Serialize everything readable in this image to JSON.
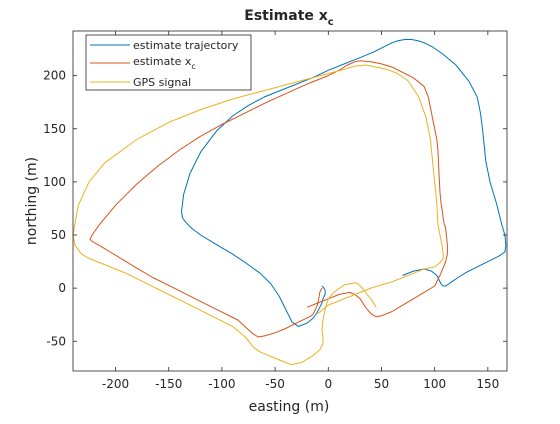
{
  "chart_data": {
    "type": "line",
    "title": "Estimate x",
    "title_subscript": "c",
    "xlabel": "easting (m)",
    "ylabel": "northing (m)",
    "xlim": [
      -240,
      168
    ],
    "ylim": [
      -78,
      242
    ],
    "xticks": [
      -200,
      -150,
      -100,
      -50,
      0,
      50,
      100,
      150
    ],
    "yticks": [
      -50,
      0,
      50,
      100,
      150,
      200
    ],
    "grid": false,
    "legend_position": "top-left",
    "series": [
      {
        "name": "estimate trajectory",
        "color": "#0072BD",
        "x": [
          70,
          80,
          90,
          97,
          102,
          104,
          106,
          108,
          110,
          112,
          116,
          122,
          130,
          140,
          150,
          160,
          166,
          167,
          166,
          163,
          158,
          152,
          148,
          146,
          145,
          143,
          140,
          132,
          120,
          108,
          98,
          90,
          84,
          78,
          72,
          66,
          60,
          54,
          48,
          42,
          30,
          15,
          0,
          -15,
          -30,
          -45,
          -60,
          -75,
          -90,
          -105,
          -120,
          -130,
          -136,
          -138,
          -137,
          -134,
          -128,
          -120,
          -110,
          -100,
          -90,
          -78,
          -64,
          -54,
          -46,
          -40,
          -34,
          -28,
          -20,
          -14,
          -10,
          -8,
          -6,
          -5,
          -4,
          -3,
          -3,
          -4,
          -6
        ],
        "y": [
          12,
          16,
          18,
          16,
          12,
          8,
          4,
          2,
          2,
          3,
          6,
          10,
          15,
          20,
          25,
          30,
          34,
          40,
          50,
          60,
          80,
          100,
          120,
          140,
          150,
          165,
          180,
          195,
          210,
          220,
          227,
          231,
          233,
          234,
          234,
          233,
          231,
          228,
          225,
          222,
          217,
          211,
          205,
          198,
          192,
          186,
          180,
          172,
          162,
          148,
          128,
          108,
          88,
          72,
          66,
          62,
          56,
          50,
          44,
          38,
          32,
          24,
          14,
          4,
          -8,
          -20,
          -32,
          -36,
          -33,
          -28,
          -22,
          -18,
          -14,
          -10,
          -8,
          -6,
          -2,
          0,
          2
        ]
      },
      {
        "name": "estimate x",
        "name_subscript": "c",
        "color": "#D95319",
        "x": [
          -20,
          -10,
          0,
          10,
          20,
          25,
          30,
          35,
          40,
          45,
          50,
          60,
          70,
          80,
          90,
          100,
          105,
          110,
          112,
          112,
          111,
          110,
          109,
          108,
          107,
          106,
          105,
          104,
          103,
          102,
          100,
          98,
          96,
          94,
          90,
          80,
          70,
          60,
          50,
          40,
          30,
          25,
          18,
          10,
          0,
          -20,
          -40,
          -60,
          -80,
          -100,
          -120,
          -140,
          -160,
          -180,
          -200,
          -215,
          -222,
          -224,
          -222,
          -215,
          -205,
          -195,
          -182,
          -165,
          -145,
          -125,
          -105,
          -85,
          -72,
          -66,
          -60,
          -50,
          -40,
          -28,
          -20,
          -16,
          -14,
          -12,
          -10,
          -9,
          -8,
          -6
        ],
        "y": [
          -18,
          -14,
          -10,
          -6,
          -4,
          -6,
          -10,
          -18,
          -24,
          -27,
          -26,
          -22,
          -16,
          -10,
          -4,
          2,
          12,
          24,
          32,
          40,
          50,
          58,
          60,
          66,
          74,
          80,
          90,
          110,
          130,
          140,
          150,
          160,
          170,
          180,
          190,
          198,
          203,
          208,
          211,
          213,
          214,
          213,
          210,
          205,
          200,
          192,
          183,
          174,
          164,
          154,
          143,
          130,
          115,
          98,
          78,
          60,
          50,
          46,
          44,
          40,
          34,
          28,
          20,
          10,
          0,
          -10,
          -20,
          -30,
          -42,
          -46,
          -45,
          -42,
          -38,
          -32,
          -28,
          -26,
          -24,
          -20,
          -15,
          -10,
          -4,
          0
        ]
      },
      {
        "name": "GPS signal",
        "color": "#EDB120",
        "x": [
          -10,
          -5,
          0,
          20,
          40,
          60,
          70,
          80,
          90,
          100,
          105,
          108,
          108,
          107,
          105,
          103,
          102,
          100,
          98,
          96,
          92,
          85,
          75,
          65,
          55,
          45,
          35,
          25,
          15,
          0,
          -30,
          -60,
          -90,
          -120,
          -150,
          -180,
          -210,
          -225,
          -235,
          -240,
          -238,
          -232,
          -225,
          -215,
          -205,
          -190,
          -170,
          -150,
          -130,
          -110,
          -90,
          -78,
          -70,
          -64,
          -55,
          -45,
          -35,
          -25,
          -15,
          -8,
          -5,
          -5,
          -6,
          -5,
          -3,
          0,
          5,
          15,
          25,
          28,
          30,
          32,
          35,
          40,
          45
        ],
        "y": [
          -24,
          -20,
          -16,
          -8,
          0,
          6,
          10,
          14,
          18,
          20,
          24,
          28,
          32,
          40,
          50,
          60,
          80,
          100,
          120,
          140,
          160,
          180,
          195,
          202,
          206,
          208,
          210,
          209,
          206,
          202,
          194,
          186,
          178,
          168,
          156,
          140,
          118,
          100,
          78,
          50,
          40,
          32,
          28,
          24,
          20,
          14,
          4,
          -6,
          -16,
          -26,
          -36,
          -46,
          -56,
          -60,
          -64,
          -68,
          -72,
          -70,
          -64,
          -58,
          -52,
          -46,
          -40,
          -30,
          -20,
          -10,
          -4,
          3,
          5,
          4,
          2,
          0,
          -4,
          -10,
          -18
        ]
      }
    ]
  }
}
